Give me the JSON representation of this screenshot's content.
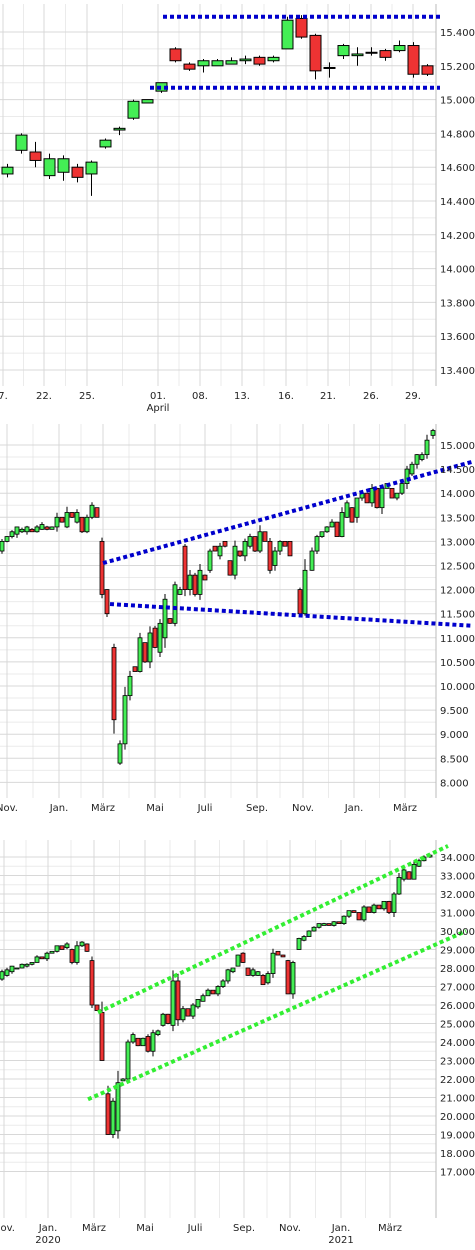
{
  "colors": {
    "up": "#44ee55",
    "down": "#ee3333",
    "line_blue": "#0000cc",
    "line_green": "#33ee33",
    "grid": "#d8d8d8"
  },
  "chart_data": [
    {
      "type": "candlestick",
      "x_ticks": [
        "7.",
        "22.",
        "25.",
        "01.",
        "08.",
        "13.",
        "16.",
        "21.",
        "26.",
        "29."
      ],
      "x_tick_sub": [
        "",
        "",
        "",
        "April",
        "",
        "",
        "",
        "",
        "",
        ""
      ],
      "y_ticks": [
        "15.400",
        "15.200",
        "15.000",
        "14.800",
        "14.600",
        "14.400",
        "14.200",
        "14.000",
        "13.800",
        "13.600",
        "13.400"
      ],
      "ylim": [
        13.35,
        15.53
      ],
      "candles": [
        {
          "o": 14.56,
          "c": 14.6,
          "h": 14.62,
          "l": 14.54
        },
        {
          "o": 14.7,
          "c": 14.79,
          "h": 14.8,
          "l": 14.68
        },
        {
          "o": 14.69,
          "c": 14.64,
          "h": 14.75,
          "l": 14.6
        },
        {
          "o": 14.55,
          "c": 14.65,
          "h": 14.68,
          "l": 14.53
        },
        {
          "o": 14.57,
          "c": 14.65,
          "h": 14.67,
          "l": 14.52
        },
        {
          "o": 14.6,
          "c": 14.54,
          "h": 14.62,
          "l": 14.51
        },
        {
          "o": 14.56,
          "c": 14.63,
          "h": 14.64,
          "l": 14.43
        },
        {
          "o": 14.72,
          "c": 14.76,
          "h": 14.77,
          "l": 14.71
        },
        {
          "o": 14.82,
          "c": 14.83,
          "h": 14.84,
          "l": 14.79
        },
        {
          "o": 14.89,
          "c": 14.99,
          "h": 15.0,
          "l": 14.88
        },
        {
          "o": 14.98,
          "c": 15.0,
          "h": 15.0,
          "l": 14.98
        },
        {
          "o": 15.05,
          "c": 15.1,
          "h": 15.1,
          "l": 15.04
        },
        {
          "o": 15.3,
          "c": 15.23,
          "h": 15.31,
          "l": 15.22
        },
        {
          "o": 15.21,
          "c": 15.18,
          "h": 15.22,
          "l": 15.17
        },
        {
          "o": 15.2,
          "c": 15.23,
          "h": 15.24,
          "l": 15.16
        },
        {
          "o": 15.2,
          "c": 15.23,
          "h": 15.24,
          "l": 15.2
        },
        {
          "o": 15.21,
          "c": 15.23,
          "h": 15.25,
          "l": 15.21
        },
        {
          "o": 15.23,
          "c": 15.24,
          "h": 15.26,
          "l": 15.21
        },
        {
          "o": 15.25,
          "c": 15.21,
          "h": 15.26,
          "l": 15.2
        },
        {
          "o": 15.23,
          "c": 15.25,
          "h": 15.26,
          "l": 15.22
        },
        {
          "o": 15.3,
          "c": 15.47,
          "h": 15.49,
          "l": 15.3
        },
        {
          "o": 15.48,
          "c": 15.37,
          "h": 15.5,
          "l": 15.36
        },
        {
          "o": 15.38,
          "c": 15.17,
          "h": 15.39,
          "l": 15.12
        },
        {
          "o": 15.19,
          "c": 15.19,
          "h": 15.22,
          "l": 15.13
        },
        {
          "o": 15.26,
          "c": 15.32,
          "h": 15.33,
          "l": 15.24
        },
        {
          "o": 15.26,
          "c": 15.27,
          "h": 15.31,
          "l": 15.2
        },
        {
          "o": 15.28,
          "c": 15.28,
          "h": 15.31,
          "l": 15.26
        },
        {
          "o": 15.29,
          "c": 15.25,
          "h": 15.3,
          "l": 15.23
        },
        {
          "o": 15.29,
          "c": 15.32,
          "h": 15.35,
          "l": 15.28
        },
        {
          "o": 15.32,
          "c": 15.15,
          "h": 15.34,
          "l": 15.13
        },
        {
          "o": 15.2,
          "c": 15.15,
          "h": 15.21,
          "l": 15.14
        }
      ],
      "lines": [
        {
          "style": "blue",
          "from": [
            15.49,
            0.0
          ],
          "to": [
            15.49,
            1.0
          ]
        },
        {
          "style": "blue",
          "from": [
            15.07,
            0.0
          ],
          "to": [
            15.07,
            1.0
          ]
        }
      ]
    },
    {
      "type": "candlestick",
      "x_ticks": [
        "Nov.",
        "Jan.",
        "März",
        "Mai",
        "Juli",
        "Sep.",
        "Nov.",
        "Jan.",
        "März"
      ],
      "y_ticks": [
        "15.000",
        "14.500",
        "14.000",
        "13.500",
        "13.000",
        "12.500",
        "12.000",
        "11.500",
        "11.000",
        "10.500",
        "10.000",
        "9.500",
        "9.000",
        "8.500",
        "8.000"
      ],
      "ylim": [
        7.7,
        15.35
      ]
    },
    {
      "type": "candlestick",
      "x_ticks": [
        "Nov.",
        "Jan.",
        "März",
        "Mai",
        "Juli",
        "Sep.",
        "Nov.",
        "Jan.",
        "März"
      ],
      "x_tick_sub": [
        "",
        "2020",
        "",
        "",
        "",
        "",
        "",
        "2021",
        ""
      ],
      "y_ticks": [
        "34.000",
        "33.000",
        "32.000",
        "31.000",
        "30.000",
        "29.000",
        "28.000",
        "27.000",
        "26.000",
        "25.000",
        "24.000",
        "23.000",
        "22.000",
        "21.000",
        "20.000",
        "19.000",
        "18.000",
        "17.000"
      ],
      "ylim": [
        16.6,
        34.8
      ]
    }
  ]
}
